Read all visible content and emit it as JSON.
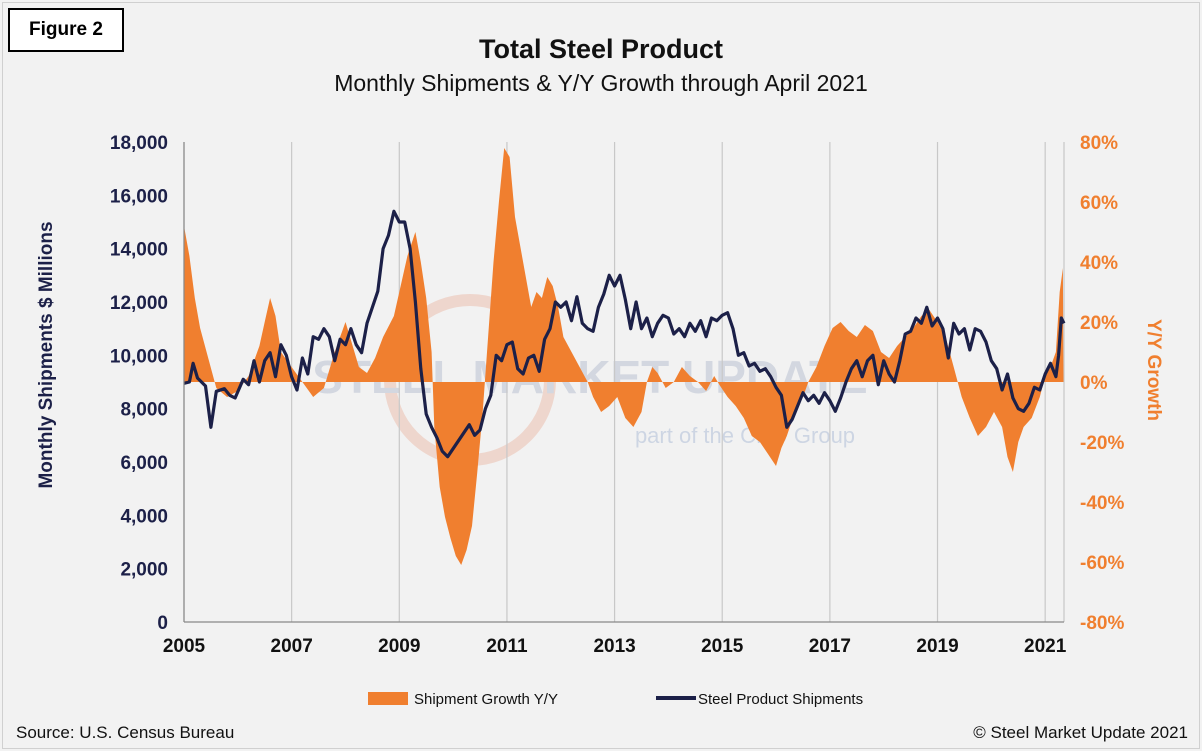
{
  "figure_label": "Figure 2",
  "source": "Source: U.S. Census Bureau",
  "copyright": "© Steel Market Update 2021",
  "watermark": {
    "main": "STEEL MARKET UPDATE",
    "sub": "part of the CRU Group"
  },
  "colors": {
    "growth": "#f07f2f",
    "shipments": "#1c2048",
    "grid": "#c8c8c8",
    "left_axis_text": "#1c2048",
    "right_axis_text": "#f07f2f"
  },
  "chart_data": {
    "type": "area",
    "title": "Total Steel Product",
    "subtitle": "Monthly Shipments & Y/Y Growth through April 2021",
    "ylabel": "Monthly Shipments $ Millions",
    "y2label": "Y/Y Growth",
    "x_tick_labels": [
      "2005",
      "2007",
      "2009",
      "2011",
      "2013",
      "2015",
      "2017",
      "2019",
      "2021"
    ],
    "y_tick_labels": [
      "0",
      "2,000",
      "4,000",
      "6,000",
      "8,000",
      "10,000",
      "12,000",
      "14,000",
      "16,000",
      "18,000"
    ],
    "y2_tick_labels": [
      "-80%",
      "-60%",
      "-40%",
      "-20%",
      "0%",
      "20%",
      "40%",
      "60%",
      "80%"
    ],
    "ylim": [
      0,
      18000
    ],
    "y2lim": [
      -80,
      80
    ],
    "xlim": [
      2005.0,
      2021.35
    ],
    "grid": "vertical",
    "legend_position": "bottom",
    "series": [
      {
        "name": "Shipment Growth Y/Y",
        "type": "area",
        "axis": "right",
        "points": [
          [
            2005.0,
            52
          ],
          [
            2005.1,
            42
          ],
          [
            2005.2,
            28
          ],
          [
            2005.3,
            18
          ],
          [
            2005.45,
            8
          ],
          [
            2005.6,
            -2
          ],
          [
            2005.8,
            -5
          ],
          [
            2006.0,
            -3
          ],
          [
            2006.2,
            2
          ],
          [
            2006.4,
            12
          ],
          [
            2006.5,
            20
          ],
          [
            2006.6,
            28
          ],
          [
            2006.7,
            22
          ],
          [
            2006.8,
            10
          ],
          [
            2007.0,
            5
          ],
          [
            2007.2,
            0
          ],
          [
            2007.4,
            -5
          ],
          [
            2007.6,
            -2
          ],
          [
            2007.8,
            10
          ],
          [
            2008.0,
            20
          ],
          [
            2008.1,
            14
          ],
          [
            2008.25,
            5
          ],
          [
            2008.4,
            3
          ],
          [
            2008.55,
            8
          ],
          [
            2008.7,
            15
          ],
          [
            2008.9,
            22
          ],
          [
            2009.0,
            30
          ],
          [
            2009.15,
            42
          ],
          [
            2009.3,
            50
          ],
          [
            2009.4,
            40
          ],
          [
            2009.5,
            28
          ],
          [
            2009.6,
            10
          ],
          [
            2009.65,
            -15
          ],
          [
            2009.75,
            -35
          ],
          [
            2009.85,
            -45
          ],
          [
            2009.95,
            -52
          ],
          [
            2010.05,
            -58
          ],
          [
            2010.15,
            -61
          ],
          [
            2010.25,
            -56
          ],
          [
            2010.35,
            -48
          ],
          [
            2010.45,
            -30
          ],
          [
            2010.55,
            -10
          ],
          [
            2010.65,
            15
          ],
          [
            2010.75,
            40
          ],
          [
            2010.85,
            60
          ],
          [
            2010.95,
            78
          ],
          [
            2011.05,
            75
          ],
          [
            2011.15,
            55
          ],
          [
            2011.25,
            45
          ],
          [
            2011.35,
            35
          ],
          [
            2011.45,
            25
          ],
          [
            2011.55,
            30
          ],
          [
            2011.65,
            28
          ],
          [
            2011.75,
            35
          ],
          [
            2011.85,
            32
          ],
          [
            2011.95,
            25
          ],
          [
            2012.05,
            15
          ],
          [
            2012.2,
            10
          ],
          [
            2012.35,
            5
          ],
          [
            2012.5,
            0
          ],
          [
            2012.6,
            -5
          ],
          [
            2012.75,
            -10
          ],
          [
            2012.9,
            -8
          ],
          [
            2013.05,
            -5
          ],
          [
            2013.2,
            -12
          ],
          [
            2013.35,
            -15
          ],
          [
            2013.5,
            -10
          ],
          [
            2013.6,
            0
          ],
          [
            2013.7,
            5
          ],
          [
            2013.8,
            3
          ],
          [
            2013.95,
            -2
          ],
          [
            2014.1,
            0
          ],
          [
            2014.25,
            5
          ],
          [
            2014.4,
            2
          ],
          [
            2014.55,
            0
          ],
          [
            2014.7,
            -3
          ],
          [
            2014.85,
            2
          ],
          [
            2014.95,
            -1
          ],
          [
            2015.1,
            -5
          ],
          [
            2015.25,
            -8
          ],
          [
            2015.4,
            -12
          ],
          [
            2015.55,
            -18
          ],
          [
            2015.7,
            -20
          ],
          [
            2015.85,
            -24
          ],
          [
            2016.0,
            -28
          ],
          [
            2016.1,
            -22
          ],
          [
            2016.2,
            -18
          ],
          [
            2016.35,
            -10
          ],
          [
            2016.5,
            -5
          ],
          [
            2016.6,
            0
          ],
          [
            2016.75,
            5
          ],
          [
            2016.9,
            12
          ],
          [
            2017.05,
            18
          ],
          [
            2017.2,
            20
          ],
          [
            2017.35,
            17
          ],
          [
            2017.5,
            15
          ],
          [
            2017.65,
            19
          ],
          [
            2017.8,
            17
          ],
          [
            2017.95,
            10
          ],
          [
            2018.1,
            8
          ],
          [
            2018.25,
            12
          ],
          [
            2018.4,
            15
          ],
          [
            2018.55,
            18
          ],
          [
            2018.7,
            22
          ],
          [
            2018.85,
            24
          ],
          [
            2019.0,
            20
          ],
          [
            2019.15,
            15
          ],
          [
            2019.3,
            5
          ],
          [
            2019.45,
            -5
          ],
          [
            2019.6,
            -12
          ],
          [
            2019.75,
            -18
          ],
          [
            2019.9,
            -15
          ],
          [
            2020.05,
            -10
          ],
          [
            2020.2,
            -15
          ],
          [
            2020.3,
            -25
          ],
          [
            2020.4,
            -30
          ],
          [
            2020.5,
            -20
          ],
          [
            2020.6,
            -15
          ],
          [
            2020.75,
            -12
          ],
          [
            2020.9,
            -5
          ],
          [
            2021.0,
            2
          ],
          [
            2021.1,
            5
          ],
          [
            2021.2,
            10
          ],
          [
            2021.27,
            30
          ],
          [
            2021.33,
            38
          ],
          [
            2021.34,
            0
          ]
        ]
      },
      {
        "name": "Steel Product Shipments",
        "type": "line",
        "axis": "left",
        "points": [
          [
            2005.0,
            8950
          ],
          [
            2005.1,
            9000
          ],
          [
            2005.17,
            9700
          ],
          [
            2005.25,
            9150
          ],
          [
            2005.4,
            8850
          ],
          [
            2005.5,
            7300
          ],
          [
            2005.6,
            8650
          ],
          [
            2005.75,
            8750
          ],
          [
            2005.85,
            8500
          ],
          [
            2005.95,
            8400
          ],
          [
            2006.1,
            9100
          ],
          [
            2006.2,
            8900
          ],
          [
            2006.3,
            9800
          ],
          [
            2006.4,
            9000
          ],
          [
            2006.5,
            9800
          ],
          [
            2006.6,
            10100
          ],
          [
            2006.7,
            9200
          ],
          [
            2006.8,
            10400
          ],
          [
            2006.9,
            10000
          ],
          [
            2007.0,
            9200
          ],
          [
            2007.1,
            8700
          ],
          [
            2007.2,
            9900
          ],
          [
            2007.3,
            9300
          ],
          [
            2007.4,
            10700
          ],
          [
            2007.5,
            10600
          ],
          [
            2007.6,
            11000
          ],
          [
            2007.7,
            10700
          ],
          [
            2007.8,
            9800
          ],
          [
            2007.9,
            10600
          ],
          [
            2008.0,
            10400
          ],
          [
            2008.1,
            11000
          ],
          [
            2008.2,
            10400
          ],
          [
            2008.3,
            10100
          ],
          [
            2008.4,
            11200
          ],
          [
            2008.5,
            11800
          ],
          [
            2008.6,
            12400
          ],
          [
            2008.7,
            14000
          ],
          [
            2008.8,
            14500
          ],
          [
            2008.9,
            15400
          ],
          [
            2009.0,
            15000
          ],
          [
            2009.1,
            15000
          ],
          [
            2009.2,
            14000
          ],
          [
            2009.3,
            12000
          ],
          [
            2009.4,
            9500
          ],
          [
            2009.5,
            7800
          ],
          [
            2009.6,
            7300
          ],
          [
            2009.7,
            6900
          ],
          [
            2009.8,
            6400
          ],
          [
            2009.9,
            6200
          ],
          [
            2010.0,
            6500
          ],
          [
            2010.1,
            6800
          ],
          [
            2010.2,
            7100
          ],
          [
            2010.3,
            7400
          ],
          [
            2010.4,
            7000
          ],
          [
            2010.5,
            7200
          ],
          [
            2010.6,
            8000
          ],
          [
            2010.7,
            8500
          ],
          [
            2010.8,
            10000
          ],
          [
            2010.9,
            9800
          ],
          [
            2011.0,
            10400
          ],
          [
            2011.1,
            10500
          ],
          [
            2011.2,
            9500
          ],
          [
            2011.3,
            9300
          ],
          [
            2011.4,
            9900
          ],
          [
            2011.5,
            10000
          ],
          [
            2011.6,
            9400
          ],
          [
            2011.7,
            10600
          ],
          [
            2011.8,
            11000
          ],
          [
            2011.9,
            12000
          ],
          [
            2012.0,
            11800
          ],
          [
            2012.1,
            12000
          ],
          [
            2012.2,
            11300
          ],
          [
            2012.3,
            12200
          ],
          [
            2012.4,
            11200
          ],
          [
            2012.5,
            11000
          ],
          [
            2012.6,
            10900
          ],
          [
            2012.7,
            11800
          ],
          [
            2012.8,
            12300
          ],
          [
            2012.9,
            13000
          ],
          [
            2013.0,
            12600
          ],
          [
            2013.1,
            13000
          ],
          [
            2013.2,
            12100
          ],
          [
            2013.3,
            11000
          ],
          [
            2013.4,
            12000
          ],
          [
            2013.5,
            11000
          ],
          [
            2013.6,
            11400
          ],
          [
            2013.7,
            10700
          ],
          [
            2013.8,
            11200
          ],
          [
            2013.9,
            11500
          ],
          [
            2014.0,
            11400
          ],
          [
            2014.1,
            10800
          ],
          [
            2014.2,
            11000
          ],
          [
            2014.3,
            10700
          ],
          [
            2014.4,
            11200
          ],
          [
            2014.5,
            10900
          ],
          [
            2014.6,
            11300
          ],
          [
            2014.7,
            10700
          ],
          [
            2014.8,
            11400
          ],
          [
            2014.9,
            11300
          ],
          [
            2015.0,
            11500
          ],
          [
            2015.1,
            11600
          ],
          [
            2015.2,
            11000
          ],
          [
            2015.3,
            10000
          ],
          [
            2015.4,
            10100
          ],
          [
            2015.5,
            9600
          ],
          [
            2015.6,
            9700
          ],
          [
            2015.7,
            9400
          ],
          [
            2015.8,
            9500
          ],
          [
            2015.9,
            9200
          ],
          [
            2016.0,
            8800
          ],
          [
            2016.1,
            8500
          ],
          [
            2016.2,
            7300
          ],
          [
            2016.3,
            7600
          ],
          [
            2016.4,
            8100
          ],
          [
            2016.5,
            8600
          ],
          [
            2016.6,
            8300
          ],
          [
            2016.7,
            8500
          ],
          [
            2016.8,
            8200
          ],
          [
            2016.9,
            8600
          ],
          [
            2017.0,
            8300
          ],
          [
            2017.1,
            7900
          ],
          [
            2017.2,
            8400
          ],
          [
            2017.3,
            9000
          ],
          [
            2017.4,
            9500
          ],
          [
            2017.5,
            9800
          ],
          [
            2017.6,
            9200
          ],
          [
            2017.7,
            9800
          ],
          [
            2017.8,
            10000
          ],
          [
            2017.9,
            8900
          ],
          [
            2018.0,
            9800
          ],
          [
            2018.1,
            9300
          ],
          [
            2018.2,
            9000
          ],
          [
            2018.3,
            9800
          ],
          [
            2018.4,
            10800
          ],
          [
            2018.5,
            10900
          ],
          [
            2018.6,
            11400
          ],
          [
            2018.7,
            11200
          ],
          [
            2018.8,
            11800
          ],
          [
            2018.9,
            11100
          ],
          [
            2019.0,
            11400
          ],
          [
            2019.1,
            11000
          ],
          [
            2019.2,
            9900
          ],
          [
            2019.3,
            11200
          ],
          [
            2019.4,
            10800
          ],
          [
            2019.5,
            11000
          ],
          [
            2019.6,
            10200
          ],
          [
            2019.7,
            11000
          ],
          [
            2019.8,
            10900
          ],
          [
            2019.9,
            10500
          ],
          [
            2020.0,
            9800
          ],
          [
            2020.1,
            9500
          ],
          [
            2020.2,
            8700
          ],
          [
            2020.3,
            9300
          ],
          [
            2020.4,
            8400
          ],
          [
            2020.5,
            8000
          ],
          [
            2020.6,
            7900
          ],
          [
            2020.7,
            8200
          ],
          [
            2020.8,
            8800
          ],
          [
            2020.9,
            8700
          ],
          [
            2021.0,
            9300
          ],
          [
            2021.1,
            9700
          ],
          [
            2021.2,
            9200
          ],
          [
            2021.25,
            10000
          ],
          [
            2021.3,
            11400
          ],
          [
            2021.35,
            11200
          ]
        ]
      }
    ]
  }
}
